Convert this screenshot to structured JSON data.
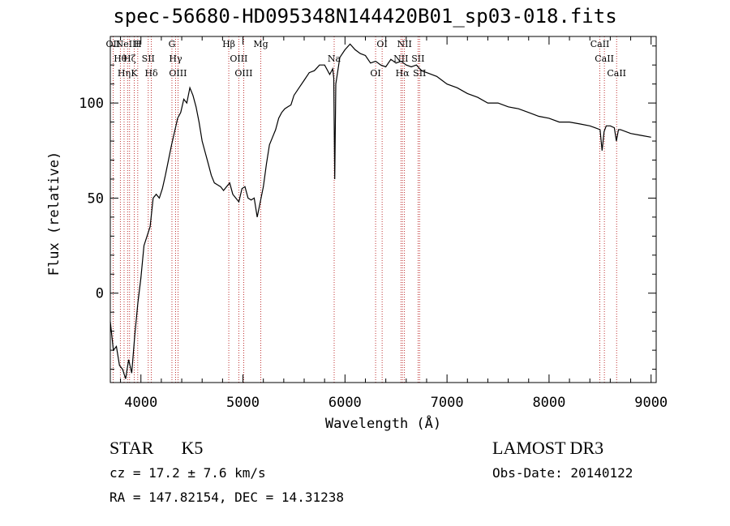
{
  "chart_data": {
    "type": "line",
    "title": "spec-56680-HD095348N144420B01_sp03-018.fits",
    "xlabel": "Wavelength (Å)",
    "ylabel": "Flux (relative)",
    "xlim": [
      3700,
      9050
    ],
    "ylim": [
      -47,
      135
    ],
    "xticks": [
      4000,
      5000,
      6000,
      7000,
      8000,
      9000
    ],
    "yticks": [
      0,
      50,
      100
    ],
    "grid": false,
    "series": [
      {
        "x": [
          3700,
          3730,
          3760,
          3790,
          3820,
          3850,
          3880,
          3910,
          3940,
          3970,
          4000,
          4030,
          4060,
          4090,
          4120,
          4150,
          4180,
          4210,
          4240,
          4270,
          4300,
          4330,
          4360,
          4390,
          4420,
          4450,
          4480,
          4510,
          4540,
          4570,
          4600,
          4630,
          4660,
          4690,
          4720,
          4750,
          4780,
          4810,
          4840,
          4870,
          4900,
          4930,
          4960,
          4990,
          5020,
          5050,
          5080,
          5110,
          5140,
          5170,
          5200,
          5230,
          5260,
          5290,
          5320,
          5350,
          5380,
          5410,
          5440,
          5470,
          5500,
          5550,
          5600,
          5650,
          5700,
          5750,
          5800,
          5850,
          5880,
          5890,
          5895,
          5900,
          5910,
          5950,
          6000,
          6050,
          6100,
          6150,
          6200,
          6250,
          6300,
          6350,
          6400,
          6450,
          6500,
          6550,
          6600,
          6650,
          6700,
          6750,
          6800,
          6850,
          6900,
          6950,
          7000,
          7100,
          7200,
          7300,
          7400,
          7500,
          7600,
          7700,
          7800,
          7900,
          8000,
          8100,
          8200,
          8300,
          8400,
          8450,
          8500,
          8520,
          8540,
          8560,
          8600,
          8640,
          8660,
          8680,
          8700,
          8800,
          8900,
          9000
        ],
        "y": [
          -15,
          -30,
          -28,
          -38,
          -40,
          -45,
          -35,
          -42,
          -22,
          -5,
          8,
          25,
          30,
          35,
          50,
          52,
          50,
          55,
          62,
          70,
          78,
          85,
          92,
          95,
          102,
          100,
          108,
          104,
          98,
          90,
          80,
          74,
          68,
          62,
          58,
          57,
          56,
          54,
          56,
          58,
          52,
          50,
          48,
          55,
          56,
          50,
          49,
          50,
          40,
          48,
          56,
          68,
          78,
          82,
          86,
          92,
          95,
          97,
          98,
          99,
          104,
          108,
          112,
          116,
          117,
          120,
          120,
          115,
          118,
          113,
          85,
          60,
          110,
          124,
          128,
          131,
          128,
          126,
          125,
          121,
          122,
          120,
          119,
          123,
          121,
          122,
          120,
          119,
          120,
          117,
          116,
          115,
          114,
          112,
          110,
          108,
          105,
          103,
          100,
          100,
          98,
          97,
          95,
          93,
          92,
          90,
          90,
          89,
          88,
          87,
          86,
          75,
          85,
          88,
          88,
          87,
          80,
          86,
          86,
          84,
          83,
          82
        ]
      }
    ],
    "lines": [
      {
        "wl": 3727,
        "label": "OII"
      },
      {
        "wl": 3798,
        "label": "Hθ"
      },
      {
        "wl": 3835,
        "label": "Hη"
      },
      {
        "wl": 3869,
        "label": "NeIII"
      },
      {
        "wl": 3889,
        "label": "Hζ"
      },
      {
        "wl": 3934,
        "label": "K"
      },
      {
        "wl": 3969,
        "label": "H"
      },
      {
        "wl": 4072,
        "label": "SII"
      },
      {
        "wl": 4102,
        "label": "Hδ"
      },
      {
        "wl": 4304,
        "label": "G"
      },
      {
        "wl": 4340,
        "label": "Hγ"
      },
      {
        "wl": 4363,
        "label": "OIII"
      },
      {
        "wl": 4861,
        "label": "Hβ"
      },
      {
        "wl": 4959,
        "label": "OIII"
      },
      {
        "wl": 5007,
        "label": "OIII"
      },
      {
        "wl": 5175,
        "label": "Mg"
      },
      {
        "wl": 5894,
        "label": "Na"
      },
      {
        "wl": 6300,
        "label": "OI"
      },
      {
        "wl": 6364,
        "label": "OI"
      },
      {
        "wl": 6548,
        "label": "NII"
      },
      {
        "wl": 6563,
        "label": "Hα"
      },
      {
        "wl": 6583,
        "label": "NII"
      },
      {
        "wl": 6716,
        "label": "SII"
      },
      {
        "wl": 6731,
        "label": "SII"
      },
      {
        "wl": 8498,
        "label": "CaII"
      },
      {
        "wl": 8542,
        "label": "CaII"
      },
      {
        "wl": 8662,
        "label": "CaII"
      }
    ]
  },
  "info": {
    "class": "STAR",
    "subclass": "K5",
    "survey": "LAMOST DR3",
    "cz": "cz = 17.2 ± 7.6 km/s",
    "obs_date": "Obs-Date: 20140122",
    "radec": "RA = 147.82154, DEC =  14.31238"
  }
}
